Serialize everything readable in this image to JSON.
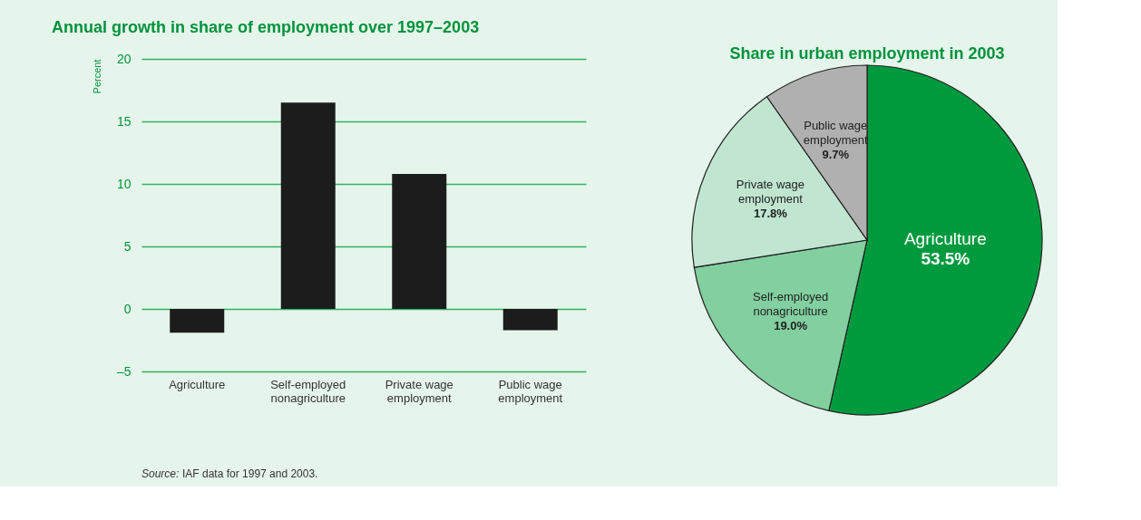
{
  "chart_data": [
    {
      "type": "bar",
      "title": "Annual growth in share of employment over 1997–2003",
      "ylabel": "Percent",
      "categories": [
        "Agriculture",
        "Self-employed nonagriculture",
        "Private wage employment",
        "Public wage employment"
      ],
      "values": [
        -1.9,
        16.5,
        10.8,
        -1.7
      ],
      "color": "#1c1c1c",
      "ylim": [
        -5,
        20
      ],
      "yticks": [
        {
          "value": -5,
          "label": "–5"
        },
        0,
        5,
        10,
        15,
        20
      ],
      "grid": "y",
      "legend": false,
      "annotations": [
        "Source: IAF data for 1997 and 2003."
      ]
    },
    {
      "type": "pie",
      "title": "Share in urban employment in 2003",
      "categories": [
        "Agriculture",
        "Self-employed nonagriculture",
        "Private wage employment",
        "Public wage employment"
      ],
      "values": [
        53.5,
        19.0,
        17.8,
        9.7
      ],
      "colors": [
        "#009a3e",
        "#82cfa0",
        "#c0e6d2",
        "#b0b0b0"
      ],
      "value_labels": [
        "53.5%",
        "19.0%",
        "17.8%",
        "9.7%"
      ],
      "legend": false
    }
  ]
}
